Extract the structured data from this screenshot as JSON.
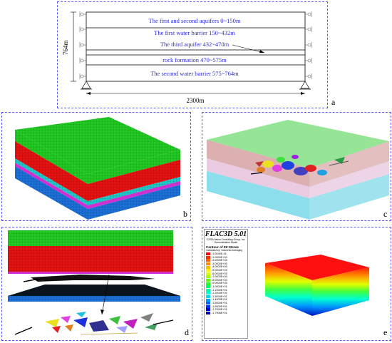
{
  "panel_a": {
    "label": "a",
    "layers": [
      {
        "text": "The first and second aquifers 0~150m"
      },
      {
        "text": "The first water barrier 150~432m"
      },
      {
        "text": "The third aquifer 432~470m"
      },
      {
        "text": "rock formation 470~575m"
      },
      {
        "text": "The second water barrier  575~764m"
      }
    ],
    "height_dim": "764m",
    "width_dim": "2300m",
    "text_color": "#2b2bd6"
  },
  "panel_b": {
    "label": "b"
  },
  "panel_c": {
    "label": "c"
  },
  "panel_d": {
    "label": "d"
  },
  "panel_e": {
    "label": "e",
    "legend": {
      "title": "FLAC3D 5.01",
      "company": "©2016 Itasca Consulting Group, Inc.",
      "model": "Demonstration Model",
      "contour": "Contour of ZZ-Stress",
      "calc": "Calculated by: Volumetric Averaging",
      "values": [
        "-1.0040E-01",
        "-1.0000E+00",
        "-2.0000E+00",
        "-3.0000E+00",
        "-4.0000E+00",
        "-5.0000E+00",
        "-6.0000E+00",
        "-7.0000E+00",
        "-8.0000E+00",
        "-9.0000E+00",
        "-1.0000E+01",
        "-1.1000E+01",
        "-1.2000E+01",
        "-1.3000E+01",
        "-1.4000E+01",
        "-1.5000E+01",
        "-1.6000E+01",
        "-1.7000E+01",
        "-1.7906E+01"
      ],
      "colors": [
        "#ff0000",
        "#ff3000",
        "#ff6000",
        "#ff9000",
        "#ffc000",
        "#fff000",
        "#d8ff00",
        "#a0ff00",
        "#60ff00",
        "#20ff20",
        "#00ff60",
        "#00ffa0",
        "#00ffe0",
        "#00d8ff",
        "#00a0ff",
        "#0068ff",
        "#0030ff",
        "#0000e0",
        "#0000b0"
      ]
    }
  },
  "colors": {
    "panel_border": "#5a5af0",
    "green": "#22c022",
    "red": "#e01010",
    "cyan": "#20c8c8",
    "magenta": "#d030d0",
    "blue": "#1e6fd0"
  }
}
